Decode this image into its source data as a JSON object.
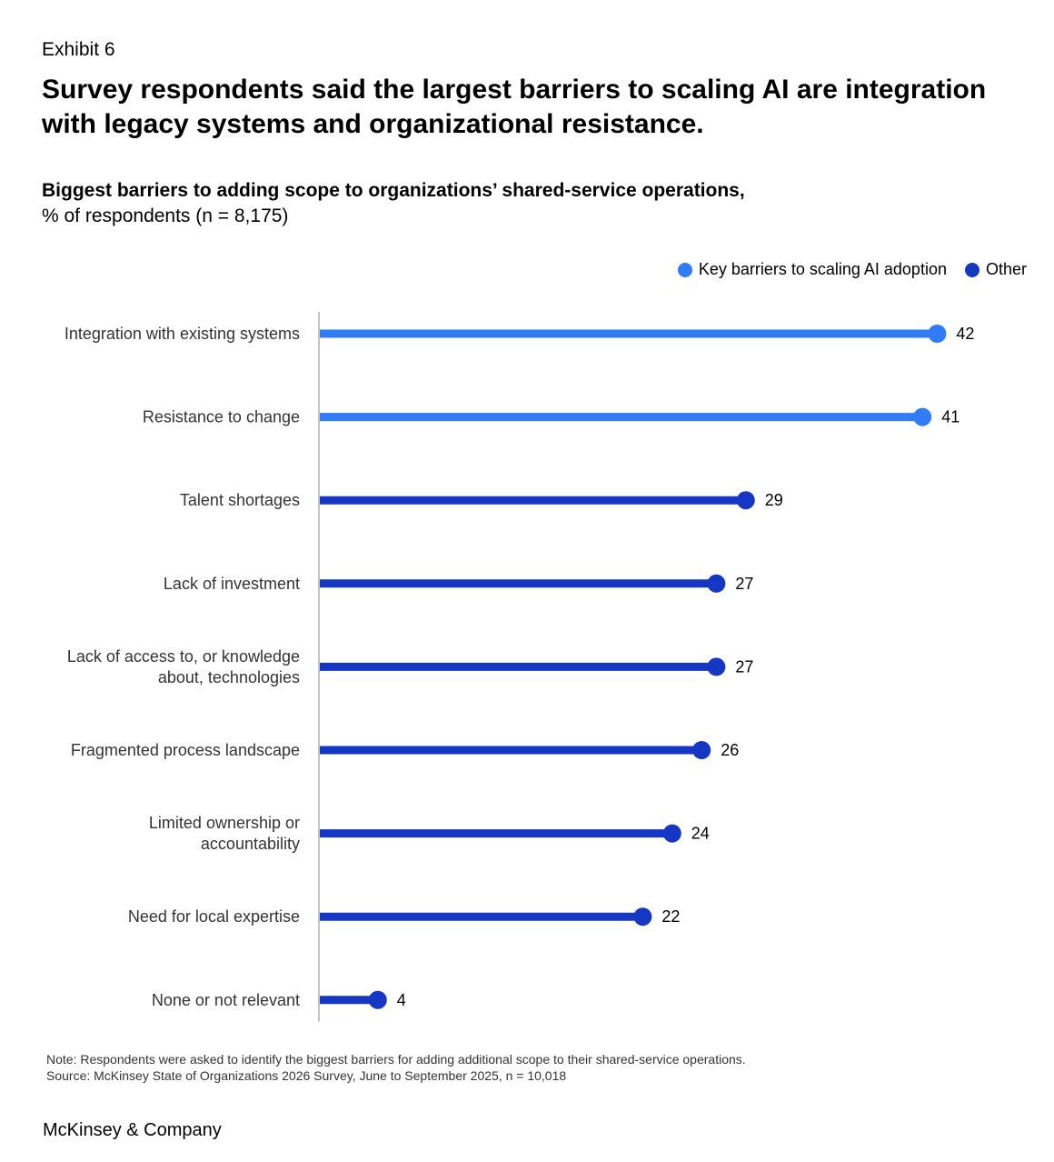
{
  "exhibit": "Exhibit 6",
  "headline": "Survey respondents said the largest barriers to scaling AI are integration with legacy systems and organizational resistance.",
  "subtitle_bold": "Biggest barriers to adding scope to organizations’ shared-service operations,",
  "subtitle_regular": "% of respondents (n = 8,175)",
  "colors": {
    "key": "#2f7cf6",
    "other": "#1537c4",
    "axis": "#888888"
  },
  "legend": {
    "key_label": "Key barriers to scaling AI adoption",
    "other_label": "Other"
  },
  "chart_data": {
    "type": "bar",
    "title": "Biggest barriers to adding scope to organizations’ shared-service operations",
    "xlabel": "% of respondents",
    "ylabel": "",
    "xlim": [
      0,
      42
    ],
    "categories": [
      [
        "Integration with existing systems"
      ],
      [
        "Resistance to change"
      ],
      [
        "Talent shortages"
      ],
      [
        "Lack of investment"
      ],
      [
        "Lack of access to, or knowledge",
        "about, technologies"
      ],
      [
        "Fragmented process landscape"
      ],
      [
        "Limited ownership or",
        "accountability"
      ],
      [
        "Need for local expertise"
      ],
      [
        "None or not relevant"
      ]
    ],
    "values": [
      42,
      41,
      29,
      27,
      27,
      26,
      24,
      22,
      4
    ],
    "group": [
      "key",
      "key",
      "other",
      "other",
      "other",
      "other",
      "other",
      "other",
      "other"
    ]
  },
  "note": "Note: Respondents were asked to identify the biggest barriers for adding additional scope to their shared-service operations.",
  "source": "Source: McKinsey State of Organizations 2026 Survey, June to September 2025, n = 10,018",
  "brand": "McKinsey & Company"
}
